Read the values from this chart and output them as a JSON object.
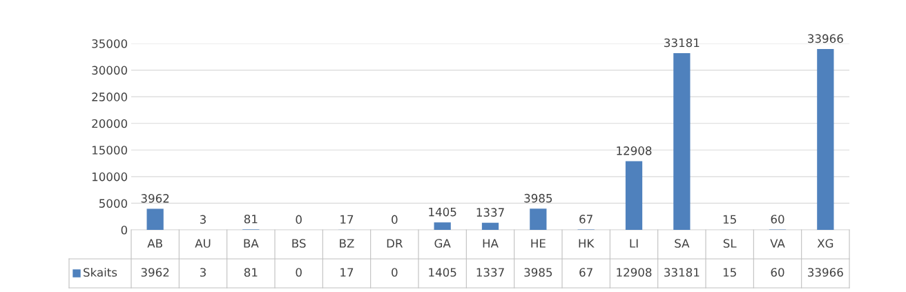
{
  "chart_data": {
    "type": "bar",
    "categories": [
      "AB",
      "AU",
      "BA",
      "BS",
      "BZ",
      "DR",
      "GA",
      "HA",
      "HE",
      "HK",
      "LI",
      "SA",
      "SL",
      "VA",
      "XG"
    ],
    "series": [
      {
        "name": "Skaits",
        "color": "#4f81bd",
        "values": [
          3962,
          3,
          81,
          0,
          17,
          0,
          1405,
          1337,
          3985,
          67,
          12908,
          33181,
          15,
          60,
          33966
        ],
        "value_labels": [
          "3962",
          "3",
          "81",
          "0",
          "17",
          "0",
          "1405",
          "1337",
          "3985",
          "67",
          "12908",
          "33181",
          "15",
          "60",
          "33966"
        ]
      }
    ],
    "ylim": [
      0,
      35000
    ],
    "yticks": [
      0,
      5000,
      10000,
      15000,
      20000,
      25000,
      30000,
      35000
    ],
    "grid": "y",
    "data_labels": true,
    "annotations": [
      "3962",
      "3",
      "81",
      "0",
      "17",
      "0",
      "1405",
      "1337",
      "3985",
      "67",
      "12908",
      "33181",
      "15",
      "60",
      "33966"
    ]
  }
}
